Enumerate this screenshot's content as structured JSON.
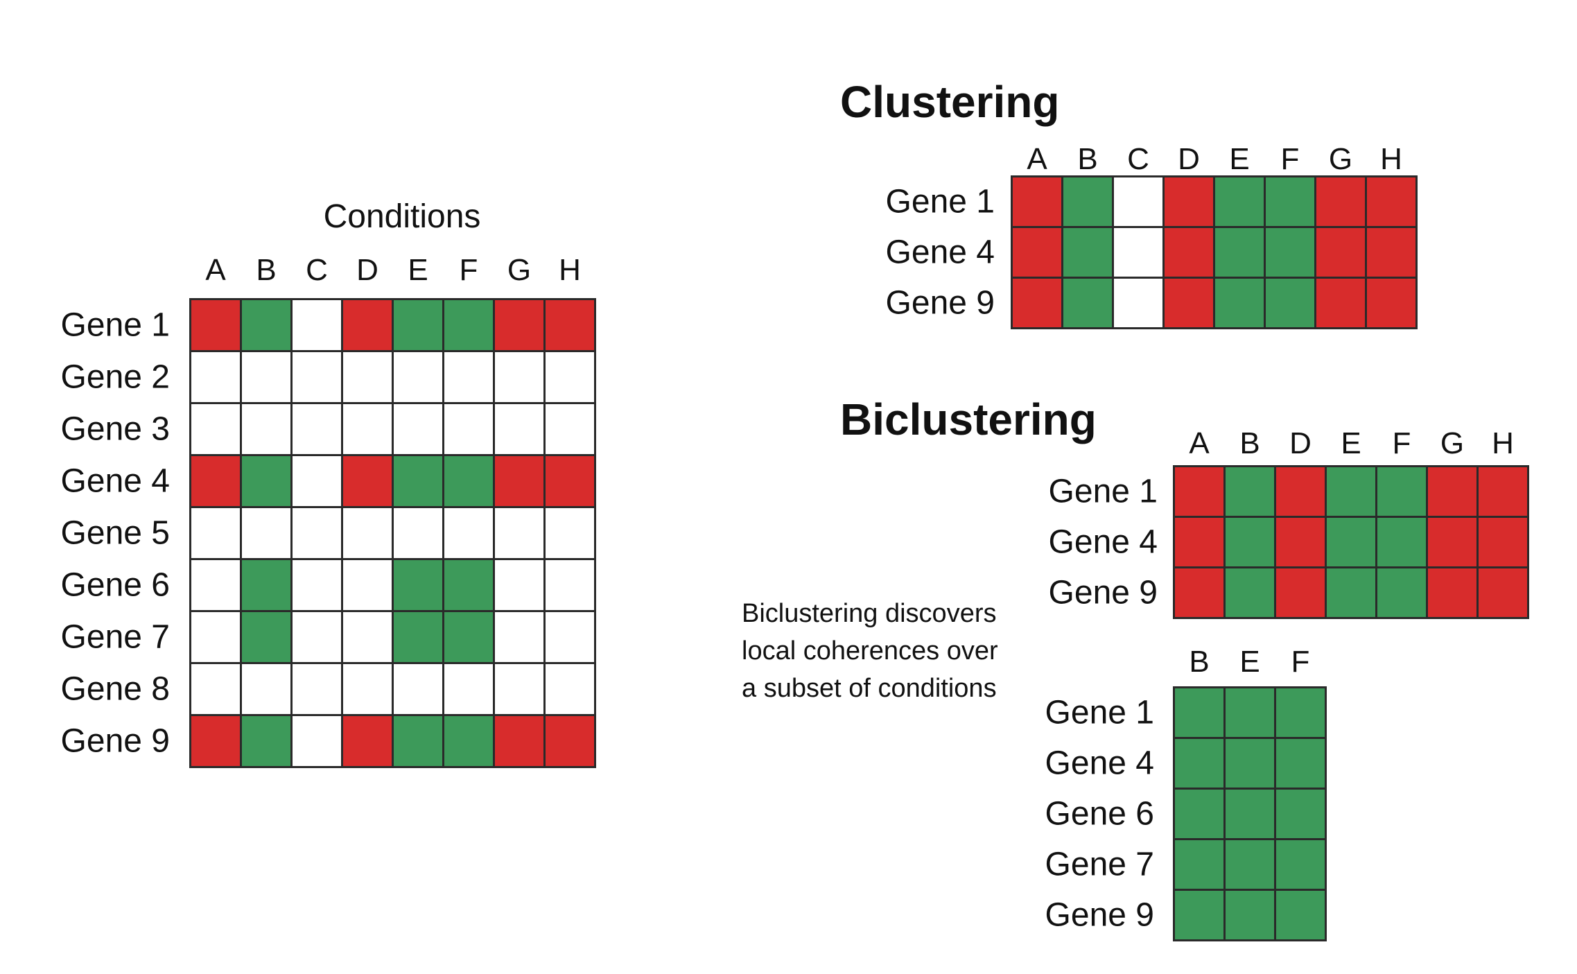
{
  "colors": {
    "up": "#d82c2c",
    "down": "#3d9a5a",
    "none": "#ffffff"
  },
  "main": {
    "title": "Conditions",
    "columns": [
      "A",
      "B",
      "C",
      "D",
      "E",
      "F",
      "G",
      "H"
    ],
    "rows": [
      "Gene 1",
      "Gene 2",
      "Gene 3",
      "Gene 4",
      "Gene 5",
      "Gene 6",
      "Gene 7",
      "Gene 8",
      "Gene 9"
    ],
    "cells": [
      [
        "up",
        "down",
        "none",
        "up",
        "down",
        "down",
        "up",
        "up"
      ],
      [
        "none",
        "none",
        "none",
        "none",
        "none",
        "none",
        "none",
        "none"
      ],
      [
        "none",
        "none",
        "none",
        "none",
        "none",
        "none",
        "none",
        "none"
      ],
      [
        "up",
        "down",
        "none",
        "up",
        "down",
        "down",
        "up",
        "up"
      ],
      [
        "none",
        "none",
        "none",
        "none",
        "none",
        "none",
        "none",
        "none"
      ],
      [
        "none",
        "down",
        "none",
        "none",
        "down",
        "down",
        "none",
        "none"
      ],
      [
        "none",
        "down",
        "none",
        "none",
        "down",
        "down",
        "none",
        "none"
      ],
      [
        "none",
        "none",
        "none",
        "none",
        "none",
        "none",
        "none",
        "none"
      ],
      [
        "up",
        "down",
        "none",
        "up",
        "down",
        "down",
        "up",
        "up"
      ]
    ]
  },
  "clustering": {
    "heading": "Clustering",
    "columns": [
      "A",
      "B",
      "C",
      "D",
      "E",
      "F",
      "G",
      "H"
    ],
    "rows": [
      "Gene 1",
      "Gene 4",
      "Gene 9"
    ],
    "cells": [
      [
        "up",
        "down",
        "none",
        "up",
        "down",
        "down",
        "up",
        "up"
      ],
      [
        "up",
        "down",
        "none",
        "up",
        "down",
        "down",
        "up",
        "up"
      ],
      [
        "up",
        "down",
        "none",
        "up",
        "down",
        "down",
        "up",
        "up"
      ]
    ]
  },
  "biclustering": {
    "heading": "Biclustering",
    "caption": [
      "Biclustering discovers",
      "local coherences over",
      "a subset of conditions"
    ],
    "first": {
      "columns": [
        "A",
        "B",
        "D",
        "E",
        "F",
        "G",
        "H"
      ],
      "rows": [
        "Gene 1",
        "Gene 4",
        "Gene 9"
      ],
      "cells": [
        [
          "up",
          "down",
          "up",
          "down",
          "down",
          "up",
          "up"
        ],
        [
          "up",
          "down",
          "up",
          "down",
          "down",
          "up",
          "up"
        ],
        [
          "up",
          "down",
          "up",
          "down",
          "down",
          "up",
          "up"
        ]
      ]
    },
    "second": {
      "columns": [
        "B",
        "E",
        "F"
      ],
      "rows": [
        "Gene 1",
        "Gene 4",
        "Gene 6",
        "Gene 7",
        "Gene 9"
      ],
      "cells": [
        [
          "down",
          "down",
          "down"
        ],
        [
          "down",
          "down",
          "down"
        ],
        [
          "down",
          "down",
          "down"
        ],
        [
          "down",
          "down",
          "down"
        ],
        [
          "down",
          "down",
          "down"
        ]
      ]
    }
  }
}
